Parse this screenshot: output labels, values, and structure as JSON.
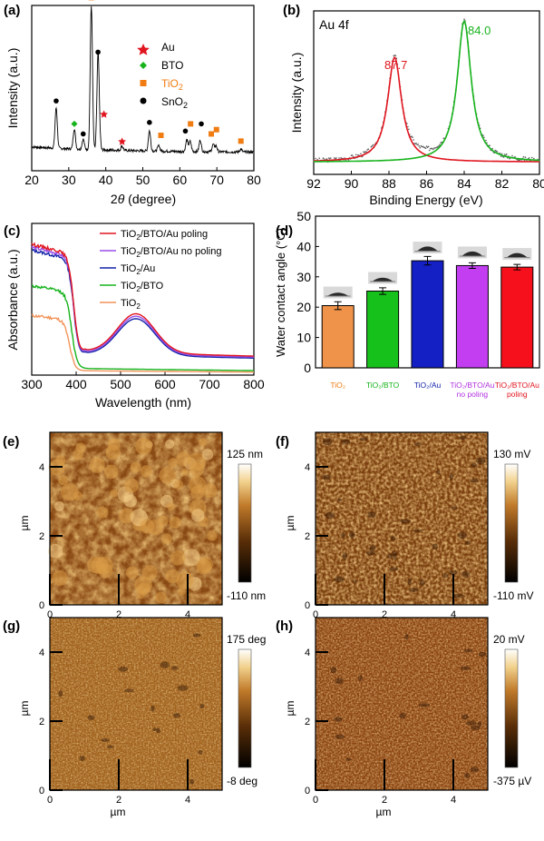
{
  "figure": {
    "panels": {
      "a": {
        "label": "(a)",
        "xlabel_theta": "θ",
        "xlabel_main": "2",
        "xlabel_unit": " (degree)",
        "ylabel": "Intensity (a.u.)",
        "xticks": [
          "20",
          "30",
          "40",
          "50",
          "60",
          "70",
          "80"
        ],
        "legend": [
          {
            "name": "Au",
            "color": "#e0151f",
            "marker": "star"
          },
          {
            "name": "BTO",
            "color": "#16b31b",
            "marker": "diamond"
          },
          {
            "name": "TiO",
            "sub": "2",
            "color": "#f07c12",
            "marker": "square"
          },
          {
            "name": "SnO",
            "sub": "2",
            "color": "#000000",
            "marker": "circle"
          }
        ]
      },
      "b": {
        "label": "(b)",
        "title": "Au 4f",
        "xlabel": "Binding Energy (eV)",
        "ylabel": "Intensity (a.u.)",
        "xticks": [
          "92",
          "90",
          "88",
          "86",
          "84",
          "82",
          "80"
        ],
        "peak1": "87.7",
        "peak2": "84.0"
      },
      "c": {
        "label": "(c)",
        "xlabel": "Wavelength (nm)",
        "ylabel": "Absorbance (a.u.)",
        "xticks": [
          "300",
          "400",
          "500",
          "600",
          "700",
          "800"
        ],
        "legend": [
          {
            "name": "TiO",
            "sub": "2",
            "tail": "/BTO/Au poling",
            "color": "#e0151f"
          },
          {
            "name": "TiO",
            "sub": "2",
            "tail": "/BTO/Au no poling",
            "color": "#9a4de8"
          },
          {
            "name": "TiO",
            "sub": "2",
            "tail": "/Au",
            "color": "#1423a8"
          },
          {
            "name": "TiO",
            "sub": "2",
            "tail": "/BTO",
            "color": "#16b31b"
          },
          {
            "name": "TiO",
            "sub": "2",
            "tail": "",
            "color": "#f2945a"
          }
        ]
      },
      "d": {
        "label": "(d)",
        "ylabel": "Water contact angle (°C)",
        "yticks": [
          "0",
          "10",
          "20",
          "30",
          "40",
          "50"
        ],
        "categories": [
          {
            "line1": "TiO₂",
            "line2": "",
            "color": "#f0934a",
            "text_color": "#f07c12"
          },
          {
            "line1": "TiO₂/BTO",
            "line2": "",
            "color": "#17c11b",
            "text_color": "#16b31b"
          },
          {
            "line1": "TiO₂/Au",
            "line2": "",
            "color": "#1420c4",
            "text_color": "#1423a8"
          },
          {
            "line1": "TiO₂/BTO/Au",
            "line2": "no poling",
            "color": "#c23ef0",
            "text_color": "#b030e0"
          },
          {
            "line1": "TiO₂/BTO/Au",
            "line2": "poling",
            "color": "#f5101b",
            "text_color": "#e0151f"
          }
        ]
      },
      "e": {
        "label": "(e)",
        "axis_unit": "µm",
        "ticks": [
          "0",
          "2",
          "4"
        ],
        "cbar_max": "125 nm",
        "cbar_min": "-110 nm"
      },
      "f": {
        "label": "(f)",
        "axis_unit": "µm",
        "ticks": [
          "0",
          "2",
          "4"
        ],
        "cbar_max": "130 mV",
        "cbar_min": "-110 mV"
      },
      "g": {
        "label": "(g)",
        "axis_unit": "µm",
        "ticks": [
          "0",
          "2",
          "4"
        ],
        "cbar_max": "175 deg",
        "cbar_min": "-8 deg"
      },
      "h": {
        "label": "(h)",
        "axis_unit": "µm",
        "ticks": [
          "0",
          "2",
          "4"
        ],
        "cbar_max": "20 mV",
        "cbar_min": "-375 µV"
      }
    }
  },
  "chart_data": [
    {
      "type": "line",
      "panel": "a",
      "xlim": [
        20,
        80
      ],
      "x_label": "2θ (degree)",
      "y_label": "Intensity (a.u.)",
      "peaks": [
        {
          "x": 26.6,
          "h": 0.28,
          "phase": "SnO2"
        },
        {
          "x": 31.5,
          "h": 0.14,
          "phase": "BTO"
        },
        {
          "x": 33.9,
          "h": 0.07,
          "phase": "SnO2"
        },
        {
          "x": 36.1,
          "h": 1.0,
          "phase": "TiO2"
        },
        {
          "x": 37.9,
          "h": 0.62,
          "phase": "SnO2"
        },
        {
          "x": 38.2,
          "h": 0.1,
          "phase": "Au"
        },
        {
          "x": 44.4,
          "h": 0.03,
          "phase": "Au"
        },
        {
          "x": 51.8,
          "h": 0.14,
          "phase": "SnO2"
        },
        {
          "x": 54.3,
          "h": 0.04,
          "phase": "TiO2"
        },
        {
          "x": 61.9,
          "h": 0.08,
          "phase": "SnO2"
        },
        {
          "x": 62.8,
          "h": 0.07,
          "phase": "TiO2"
        },
        {
          "x": 65.5,
          "h": 0.08,
          "phase": "SnO2"
        },
        {
          "x": 69.0,
          "h": 0.05,
          "phase": "TiO2"
        },
        {
          "x": 69.8,
          "h": 0.04,
          "phase": "TiO2"
        },
        {
          "x": 76.5,
          "h": 0.02,
          "phase": "TiO2"
        }
      ],
      "markers": [
        {
          "x": 26.6,
          "y": 0.36,
          "kind": "circle"
        },
        {
          "x": 31.5,
          "y": 0.2,
          "kind": "diamond"
        },
        {
          "x": 33.9,
          "y": 0.13,
          "kind": "circle"
        },
        {
          "x": 36.1,
          "y": 1.08,
          "kind": "square"
        },
        {
          "x": 37.9,
          "y": 0.7,
          "kind": "circle"
        },
        {
          "x": 39.5,
          "y": 0.27,
          "kind": "star"
        },
        {
          "x": 44.4,
          "y": 0.08,
          "kind": "star"
        },
        {
          "x": 51.8,
          "y": 0.21,
          "kind": "circle"
        },
        {
          "x": 54.9,
          "y": 0.12,
          "kind": "square"
        },
        {
          "x": 61.5,
          "y": 0.15,
          "kind": "circle"
        },
        {
          "x": 62.9,
          "y": 0.2,
          "kind": "square"
        },
        {
          "x": 65.8,
          "y": 0.2,
          "kind": "circle"
        },
        {
          "x": 68.5,
          "y": 0.13,
          "kind": "square"
        },
        {
          "x": 69.9,
          "y": 0.16,
          "kind": "square"
        },
        {
          "x": 76.5,
          "y": 0.08,
          "kind": "square"
        }
      ]
    },
    {
      "type": "line",
      "panel": "b",
      "xlim": [
        92,
        80
      ],
      "x_label": "Binding Energy (eV)",
      "y_label": "Intensity (a.u.)",
      "series": [
        {
          "name": "",
          "color": "#e0151f",
          "center": 87.7,
          "height": 0.72,
          "width": 0.45
        },
        {
          "name": "",
          "color": "#16b31b",
          "center": 84.0,
          "height": 0.97,
          "width": 0.45
        }
      ]
    },
    {
      "type": "line",
      "panel": "c",
      "xlim": [
        300,
        800
      ],
      "x_label": "Wavelength (nm)",
      "y_label": "Absorbance (a.u.)",
      "series": [
        {
          "name": "TiO2/BTO/Au poling",
          "color": "#e0151f",
          "plateau": 0.88,
          "edge": 395,
          "plasmon": 0.32,
          "tail": 0.07
        },
        {
          "name": "TiO2/BTO/Au no poling",
          "color": "#9a4de8",
          "plateau": 0.86,
          "edge": 395,
          "plasmon": 0.31,
          "tail": 0.065
        },
        {
          "name": "TiO2/Au",
          "color": "#1423a8",
          "plateau": 0.84,
          "edge": 395,
          "plasmon": 0.3,
          "tail": 0.06
        },
        {
          "name": "TiO2/BTO",
          "color": "#16b31b",
          "plateau": 0.6,
          "edge": 390,
          "plasmon": 0,
          "tail": 0.03
        },
        {
          "name": "TiO2",
          "color": "#f2945a",
          "plateau": 0.4,
          "edge": 385,
          "plasmon": 0,
          "tail": 0.02
        }
      ]
    },
    {
      "type": "bar",
      "panel": "d",
      "categories": [
        "TiO2",
        "TiO2/BTO",
        "TiO2/Au",
        "TiO2/BTO/Au no poling",
        "TiO2/BTO/Au poling"
      ],
      "values": [
        20.5,
        25.3,
        35.3,
        33.7,
        33.2
      ],
      "errors": [
        1.3,
        1.1,
        1.4,
        0.9,
        0.9
      ],
      "ylim": [
        0,
        50
      ],
      "y_label": "Water contact angle (°C)"
    }
  ]
}
